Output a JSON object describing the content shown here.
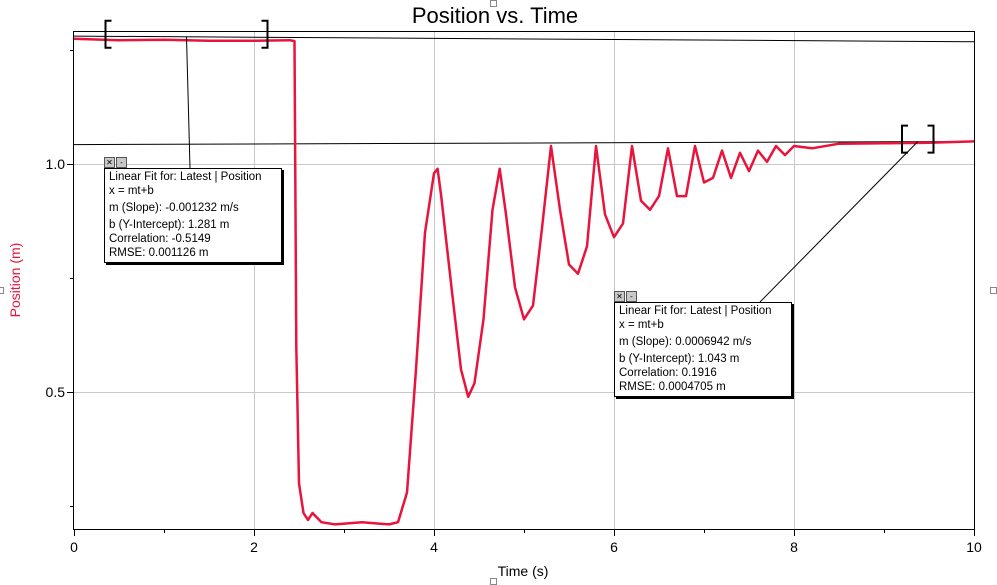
{
  "chart_data": {
    "type": "line",
    "title": "Position vs. Time",
    "xlabel": "Time (s)",
    "ylabel": "Position (m)",
    "xlim": [
      0,
      10
    ],
    "ylim": [
      0.2,
      1.29
    ],
    "x_ticks": [
      "0",
      "2",
      "4",
      "6",
      "8",
      "10"
    ],
    "y_ticks": [
      "0.5",
      "1.0"
    ],
    "grid": true,
    "series": [
      {
        "color": "#e8143c",
        "points": [
          [
            0.0,
            1.275
          ],
          [
            0.5,
            1.272
          ],
          [
            1.0,
            1.273
          ],
          [
            1.5,
            1.271
          ],
          [
            2.0,
            1.271
          ],
          [
            2.4,
            1.272
          ],
          [
            2.45,
            1.27
          ],
          [
            2.47,
            0.6
          ],
          [
            2.5,
            0.3
          ],
          [
            2.55,
            0.235
          ],
          [
            2.6,
            0.22
          ],
          [
            2.65,
            0.235
          ],
          [
            2.75,
            0.215
          ],
          [
            2.9,
            0.21
          ],
          [
            3.2,
            0.215
          ],
          [
            3.5,
            0.21
          ],
          [
            3.6,
            0.215
          ],
          [
            3.7,
            0.28
          ],
          [
            3.8,
            0.55
          ],
          [
            3.9,
            0.85
          ],
          [
            4.0,
            0.98
          ],
          [
            4.04,
            0.99
          ],
          [
            4.08,
            0.93
          ],
          [
            4.2,
            0.72
          ],
          [
            4.3,
            0.55
          ],
          [
            4.38,
            0.49
          ],
          [
            4.45,
            0.52
          ],
          [
            4.55,
            0.66
          ],
          [
            4.65,
            0.9
          ],
          [
            4.73,
            0.99
          ],
          [
            4.8,
            0.89
          ],
          [
            4.9,
            0.73
          ],
          [
            5.0,
            0.66
          ],
          [
            5.1,
            0.69
          ],
          [
            5.2,
            0.86
          ],
          [
            5.3,
            1.04
          ],
          [
            5.4,
            0.9
          ],
          [
            5.5,
            0.78
          ],
          [
            5.6,
            0.76
          ],
          [
            5.7,
            0.82
          ],
          [
            5.8,
            1.04
          ],
          [
            5.9,
            0.89
          ],
          [
            6.0,
            0.84
          ],
          [
            6.1,
            0.87
          ],
          [
            6.2,
            1.04
          ],
          [
            6.3,
            0.92
          ],
          [
            6.4,
            0.9
          ],
          [
            6.5,
            0.93
          ],
          [
            6.6,
            1.035
          ],
          [
            6.7,
            0.93
          ],
          [
            6.8,
            0.93
          ],
          [
            6.9,
            1.04
          ],
          [
            7.0,
            0.96
          ],
          [
            7.1,
            0.97
          ],
          [
            7.2,
            1.03
          ],
          [
            7.3,
            0.97
          ],
          [
            7.4,
            1.025
          ],
          [
            7.5,
            0.985
          ],
          [
            7.6,
            1.03
          ],
          [
            7.7,
            1.005
          ],
          [
            7.8,
            1.04
          ],
          [
            7.9,
            1.02
          ],
          [
            8.0,
            1.04
          ],
          [
            8.2,
            1.035
          ],
          [
            8.5,
            1.045
          ],
          [
            9.0,
            1.046
          ],
          [
            9.5,
            1.047
          ],
          [
            10.0,
            1.05
          ]
        ]
      }
    ],
    "fit_lines": [
      {
        "color": "#000000",
        "x_range": [
          0.0,
          10.0
        ],
        "slope": -0.001232,
        "intercept": 1.281
      },
      {
        "color": "#000000",
        "x_range": [
          0.0,
          10.0
        ],
        "slope": 0.0006942,
        "intercept": 1.043
      }
    ],
    "fit_ranges": [
      [
        0.35,
        2.15
      ],
      [
        9.2,
        9.55
      ]
    ],
    "annotations": [
      {
        "title": "Linear Fit for: Latest | Position",
        "equation": "x = mt+b",
        "slope": "m (Slope): -0.001232 m/s",
        "intercept": "b (Y-Intercept): 1.281 m",
        "correlation": "Correlation: -0.5149",
        "rmse": "RMSE: 0.001126 m"
      },
      {
        "title": "Linear Fit for: Latest | Position",
        "equation": "x = mt+b",
        "slope": "m (Slope): 0.0006942 m/s",
        "intercept": "b (Y-Intercept): 1.043 m",
        "correlation": "Correlation: 0.1916",
        "rmse": "RMSE: 0.0004705 m"
      }
    ]
  },
  "annotation_controls": {
    "close": "✕",
    "minimize": "-"
  }
}
